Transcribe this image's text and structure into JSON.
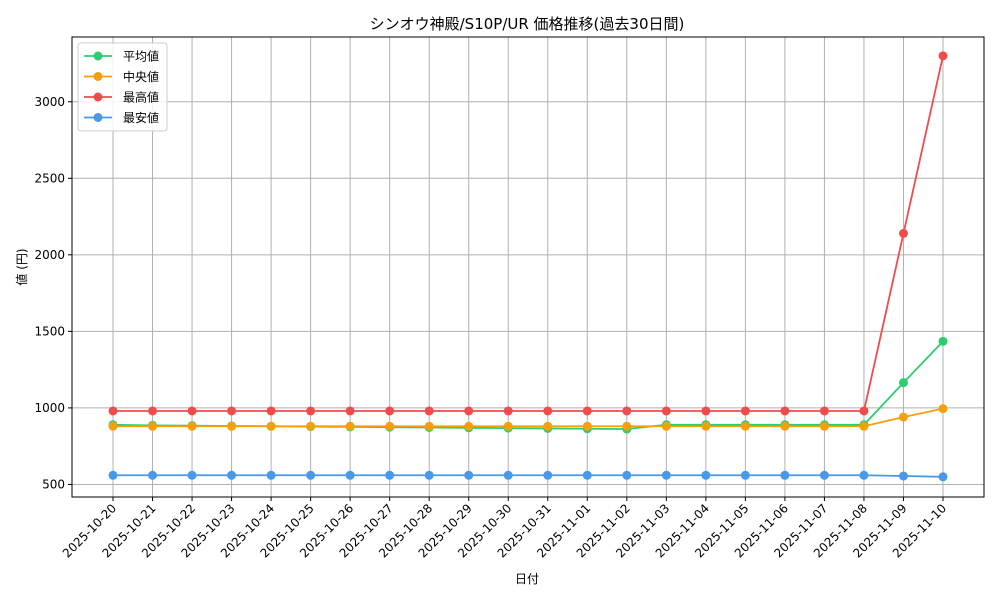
{
  "chart_data": {
    "type": "line",
    "title": "シンオウ神殿/S10P/UR 価格推移(過去30日間)",
    "xlabel": "日付",
    "ylabel": "値 (円)",
    "categories": [
      "2025-10-20",
      "2025-10-21",
      "2025-10-22",
      "2025-10-23",
      "2025-10-24",
      "2025-10-25",
      "2025-10-26",
      "2025-10-27",
      "2025-10-28",
      "2025-10-29",
      "2025-10-30",
      "2025-10-31",
      "2025-11-01",
      "2025-11-02",
      "2025-11-03",
      "2025-11-04",
      "2025-11-05",
      "2025-11-06",
      "2025-11-07",
      "2025-11-08",
      "2025-11-09",
      "2025-11-10"
    ],
    "yticks": [
      500,
      1000,
      1500,
      2000,
      2500,
      3000
    ],
    "ylim": [
      418,
      3423
    ],
    "grid": true,
    "legend_position": "top-left",
    "series": [
      {
        "name": "平均値",
        "color": "#2ecc71",
        "values": [
          890,
          886,
          884,
          882,
          880,
          878,
          876,
          874,
          872,
          870,
          868,
          866,
          864,
          862,
          890,
          890,
          890,
          890,
          890,
          890,
          1165,
          1435
        ]
      },
      {
        "name": "中央値",
        "color": "#f5a00a",
        "values": [
          880,
          880,
          880,
          880,
          880,
          880,
          880,
          880,
          880,
          880,
          880,
          880,
          880,
          880,
          880,
          880,
          880,
          880,
          880,
          880,
          940,
          995
        ]
      },
      {
        "name": "最高値",
        "color": "#ef4c4c",
        "values": [
          980,
          980,
          980,
          980,
          980,
          980,
          980,
          980,
          980,
          980,
          980,
          980,
          980,
          980,
          980,
          980,
          980,
          980,
          980,
          980,
          2140,
          3300
        ]
      },
      {
        "name": "最安値",
        "color": "#4a98e8",
        "values": [
          560,
          560,
          560,
          560,
          560,
          560,
          560,
          560,
          560,
          560,
          560,
          560,
          560,
          560,
          560,
          560,
          560,
          560,
          560,
          560,
          555,
          550
        ]
      }
    ]
  }
}
